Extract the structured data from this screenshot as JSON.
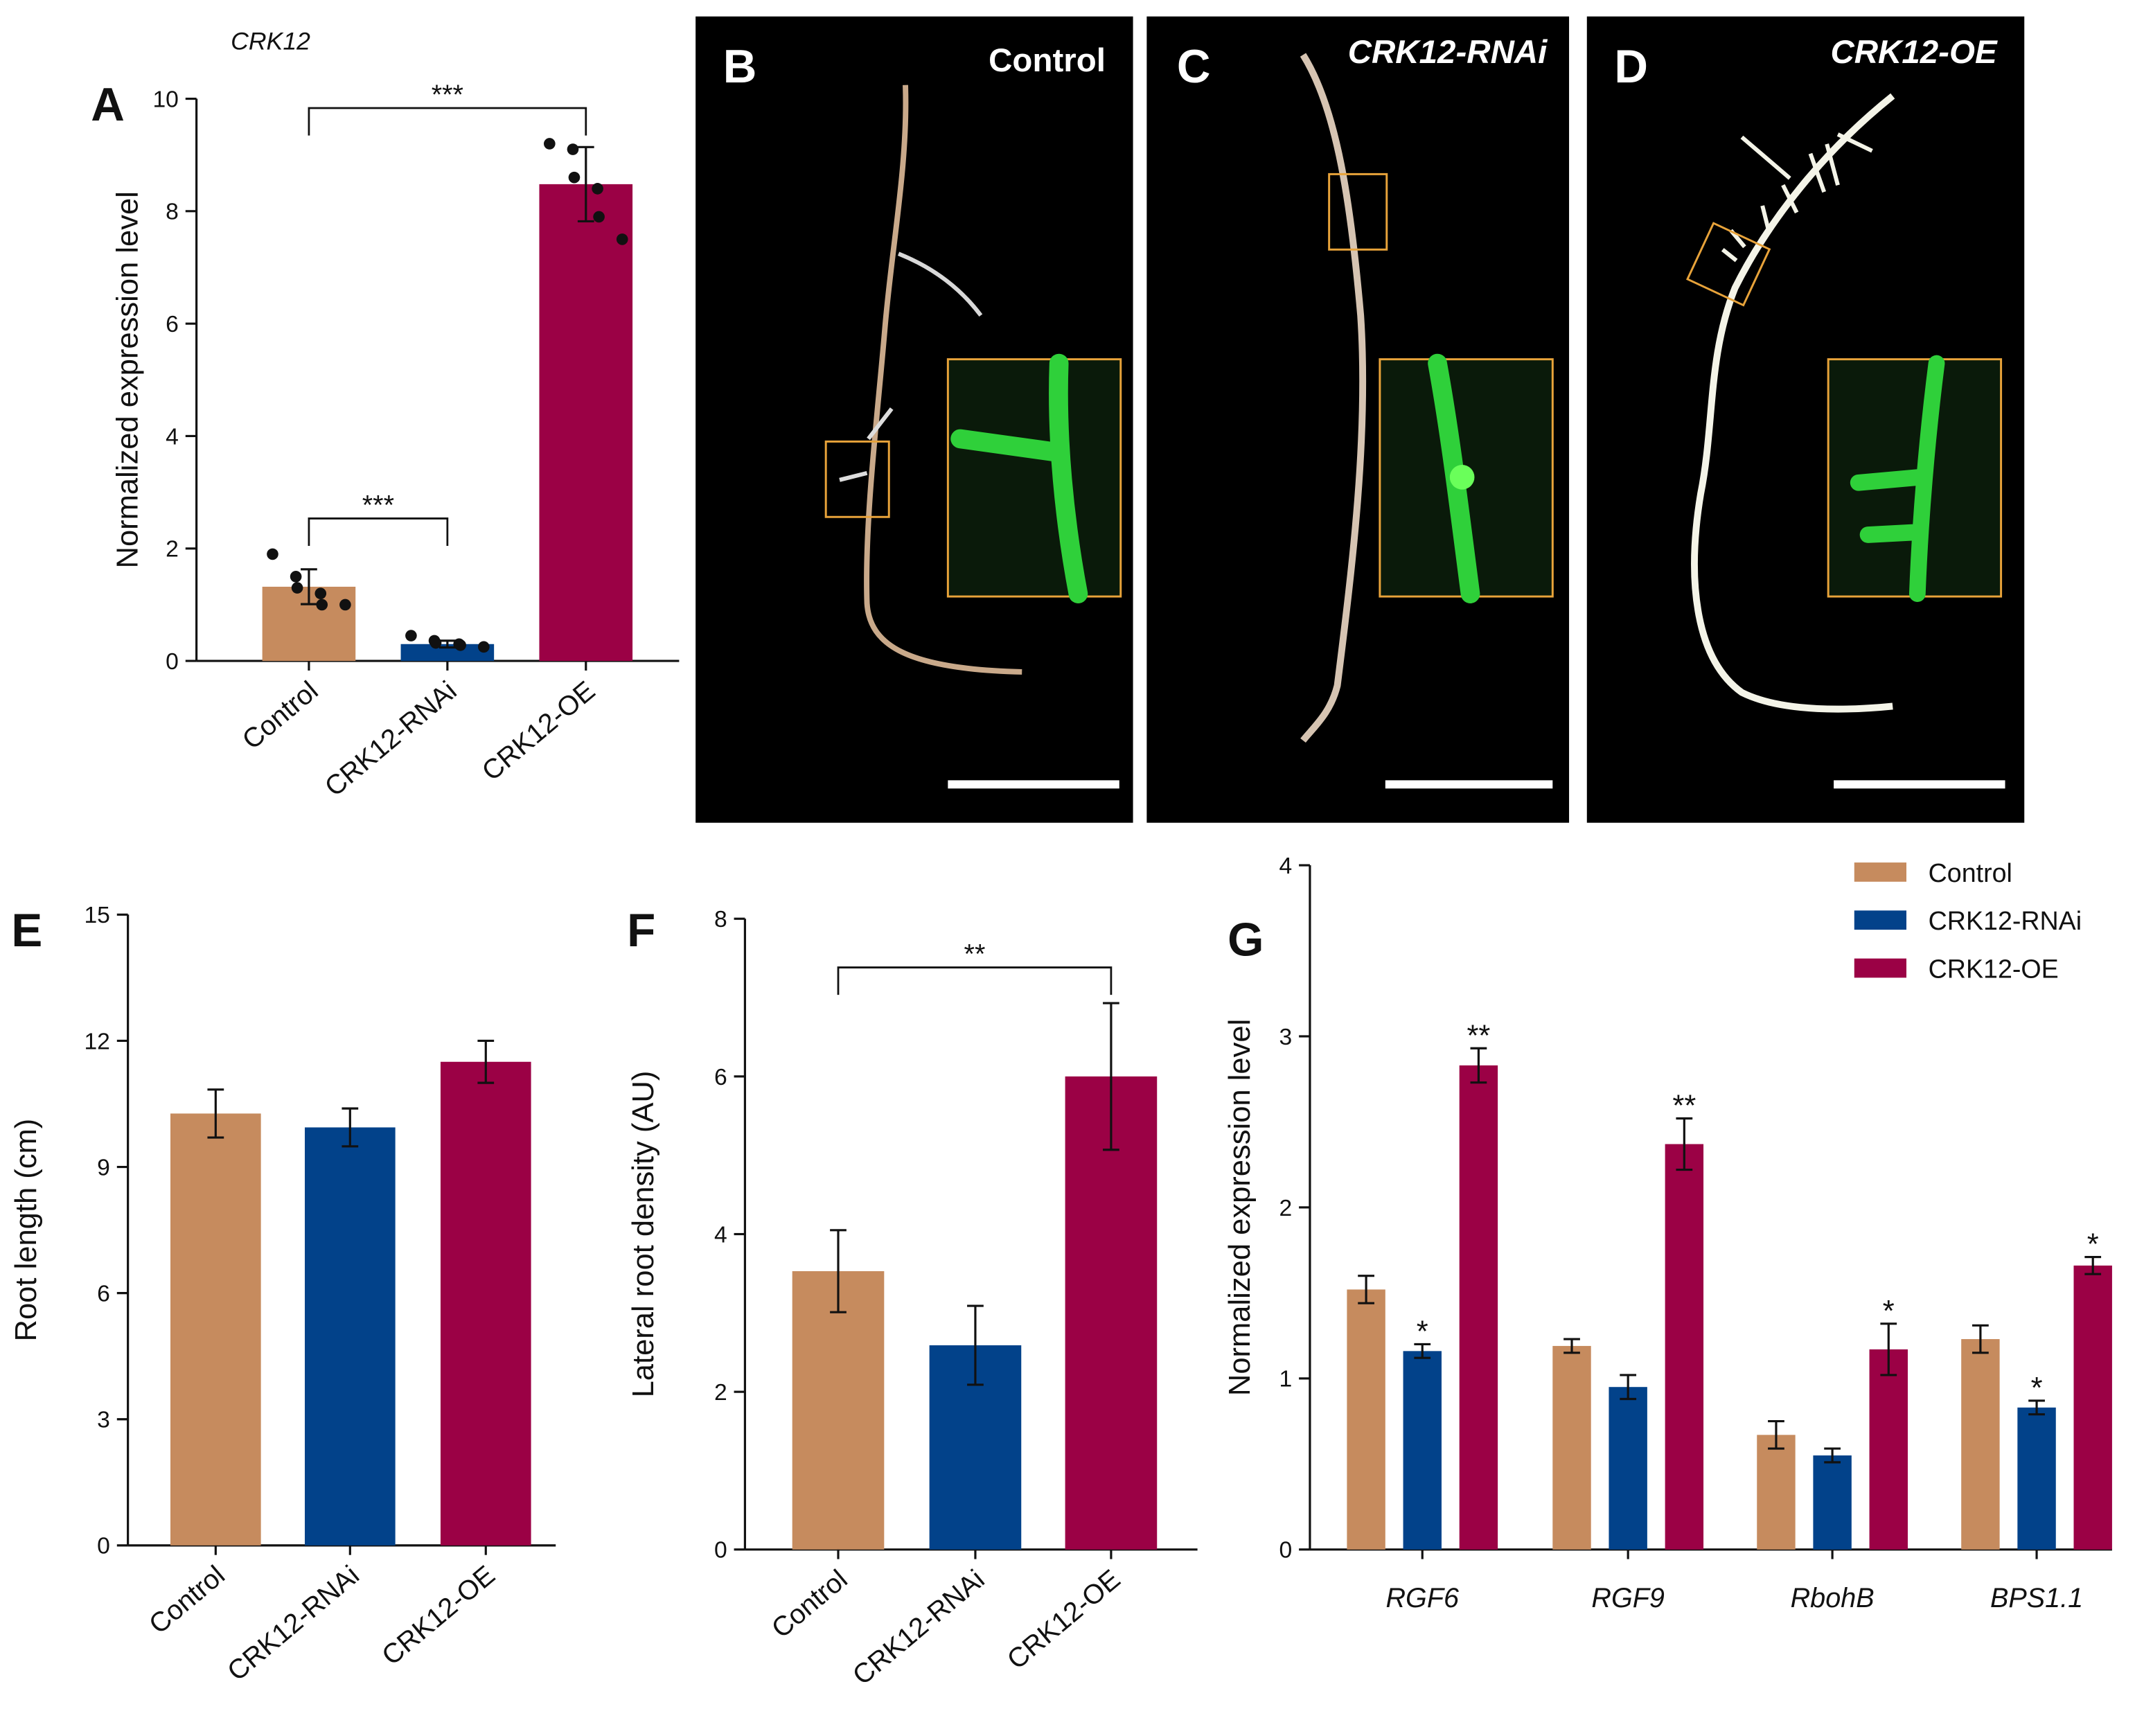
{
  "photos": [
    {
      "letter": "B",
      "label": "Control"
    },
    {
      "letter": "C",
      "label": "CRK12-RNAi"
    },
    {
      "letter": "D",
      "label": "CRK12-OE"
    }
  ],
  "chart_data": [
    {
      "type": "bar",
      "letter": "A",
      "title": "CRK12",
      "ylabel": "Normalized expression level",
      "categories": [
        "Control",
        "CRK12-RNAi",
        "CRK12-OE"
      ],
      "colors": [
        "#c68b5e",
        "#02428a",
        "#9b0145"
      ],
      "values": [
        1.32,
        0.3,
        8.48
      ],
      "errors": [
        0.31,
        0.06,
        0.66
      ],
      "points": [
        [
          1.9,
          1.5,
          1.3,
          1.2,
          1.0,
          1.0
        ],
        [
          0.45,
          0.36,
          0.32,
          0.3,
          0.28,
          0.25
        ],
        [
          9.2,
          9.1,
          8.6,
          8.4,
          7.9,
          7.5
        ]
      ],
      "ylim": [
        0,
        10
      ],
      "yticks": [
        0,
        2,
        4,
        6,
        8,
        10
      ],
      "significance": [
        {
          "pair": [
            0,
            1
          ],
          "label": "***"
        },
        {
          "pair": [
            0,
            2
          ],
          "label": "***"
        }
      ]
    },
    {
      "type": "bar",
      "letter": "E",
      "ylabel": "Root length (cm)",
      "categories": [
        "Control",
        "CRK12-RNAi",
        "CRK12-OE"
      ],
      "colors": [
        "#c68b5e",
        "#02428a",
        "#9b0145"
      ],
      "values": [
        10.27,
        9.94,
        11.5
      ],
      "errors": [
        0.57,
        0.45,
        0.5
      ],
      "ylim": [
        0,
        15
      ],
      "yticks": [
        0,
        3,
        6,
        9,
        12,
        15
      ]
    },
    {
      "type": "bar",
      "letter": "F",
      "ylabel": "Lateral root density (AU)",
      "categories": [
        "Control",
        "CRK12-RNAi",
        "CRK12-OE"
      ],
      "colors": [
        "#c68b5e",
        "#02428a",
        "#9b0145"
      ],
      "values": [
        3.53,
        2.59,
        6.0
      ],
      "errors": [
        0.52,
        0.5,
        0.93
      ],
      "ylim": [
        0,
        8
      ],
      "yticks": [
        0,
        2,
        4,
        6,
        8
      ],
      "significance": [
        {
          "pair": [
            0,
            2
          ],
          "label": "**"
        }
      ]
    },
    {
      "type": "grouped_bar",
      "letter": "G",
      "ylabel": "Normalized expression level",
      "categories": [
        "RGF6",
        "RGF9",
        "RbohB",
        "BPS1.1"
      ],
      "series": [
        {
          "name": "Control",
          "color": "#c68b5e",
          "values": [
            1.52,
            1.19,
            0.67,
            1.23
          ],
          "errors": [
            0.08,
            0.04,
            0.08,
            0.08
          ],
          "significance": [
            null,
            null,
            null,
            null
          ]
        },
        {
          "name": "CRK12-RNAi",
          "color": "#02428a",
          "values": [
            1.16,
            0.95,
            0.55,
            0.83
          ],
          "errors": [
            0.04,
            0.07,
            0.04,
            0.04
          ],
          "significance": [
            "*",
            null,
            null,
            "*"
          ]
        },
        {
          "name": "CRK12-OE",
          "color": "#9b0145",
          "values": [
            2.83,
            2.37,
            1.17,
            1.66
          ],
          "errors": [
            0.1,
            0.15,
            0.15,
            0.05
          ],
          "significance": [
            "**",
            "**",
            "*",
            "*"
          ]
        }
      ],
      "ylim": [
        0,
        4
      ],
      "yticks": [
        0,
        1,
        2,
        3,
        4
      ],
      "legend": "top-right"
    }
  ]
}
